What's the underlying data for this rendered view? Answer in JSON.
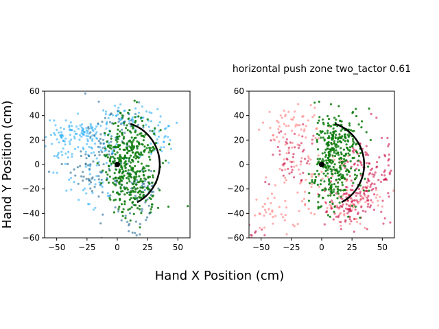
{
  "figure": {
    "supxlabel": "Hand X Position (cm)",
    "supylabel": "Hand Y Position (cm)"
  },
  "chart_data": [
    {
      "type": "scatter",
      "title": "",
      "xlim": [
        -60,
        60
      ],
      "ylim": [
        -60,
        60
      ],
      "xticks": [
        -50,
        -25,
        0,
        25,
        50
      ],
      "yticks": [
        -60,
        -40,
        -20,
        0,
        20,
        40,
        60
      ],
      "grid": false,
      "colors": {
        "light": "#1aa7f5",
        "dark": "#0b5a86",
        "zone": "#0a7a0a"
      },
      "zone": {
        "center": [
          0,
          0
        ],
        "radius": 35,
        "start_angle_deg": -62,
        "end_angle_deg": 72,
        "color": "#000000"
      },
      "series": [
        {
          "color_key": "light",
          "clusters": [
            [
              -35,
              28,
              12,
              5,
              70
            ],
            [
              -15,
              15,
              10,
              10,
              60
            ],
            [
              -45,
              10,
              8,
              10,
              30
            ],
            [
              10,
              40,
              15,
              5,
              50
            ],
            [
              35,
              20,
              6,
              8,
              30
            ],
            [
              -20,
              -15,
              10,
              10,
              30
            ]
          ]
        },
        {
          "color_key": "dark",
          "clusters": [
            [
              -5,
              0,
              12,
              20,
              90
            ],
            [
              20,
              -20,
              8,
              8,
              35
            ],
            [
              5,
              35,
              10,
              6,
              25
            ],
            [
              -30,
              0,
              10,
              8,
              25
            ],
            [
              10,
              -45,
              6,
              8,
              20
            ]
          ]
        },
        {
          "color_key": "zone",
          "clusters": [
            [
              12,
              15,
              10,
              12,
              180
            ],
            [
              12,
              -15,
              10,
              12,
              180
            ],
            [
              5,
              0,
              6,
              25,
              80
            ]
          ]
        }
      ],
      "origin_marker": [
        0,
        0
      ]
    },
    {
      "type": "scatter",
      "title": "horizontal push zone two_tactor 0.61",
      "xlim": [
        -60,
        60
      ],
      "ylim": [
        -60,
        60
      ],
      "xticks": [
        -50,
        -25,
        0,
        25,
        50
      ],
      "yticks": [
        -60,
        -40,
        -20,
        0,
        20,
        40,
        60
      ],
      "grid": false,
      "colors": {
        "light": "#ff6b6b",
        "dark": "#c8003a",
        "zone": "#0a7a0a"
      },
      "zone": {
        "center": [
          0,
          0
        ],
        "radius": 35,
        "start_angle_deg": -62,
        "end_angle_deg": 72,
        "color": "#000000"
      },
      "series": [
        {
          "color_key": "light",
          "clusters": [
            [
              -25,
              30,
              15,
              10,
              60
            ],
            [
              -15,
              -10,
              15,
              15,
              60
            ],
            [
              20,
              -30,
              15,
              10,
              60
            ],
            [
              -40,
              -40,
              10,
              8,
              30
            ]
          ]
        },
        {
          "color_key": "dark",
          "clusters": [
            [
              35,
              -10,
              12,
              15,
              130
            ],
            [
              25,
              -35,
              12,
              8,
              80
            ],
            [
              -25,
              10,
              10,
              15,
              50
            ],
            [
              -55,
              -55,
              5,
              5,
              15
            ]
          ]
        },
        {
          "color_key": "zone",
          "clusters": [
            [
              15,
              20,
              10,
              12,
              170
            ],
            [
              12,
              -10,
              10,
              12,
              150
            ],
            [
              5,
              5,
              6,
              20,
              70
            ]
          ]
        }
      ],
      "origin_marker": [
        0,
        0
      ]
    }
  ]
}
